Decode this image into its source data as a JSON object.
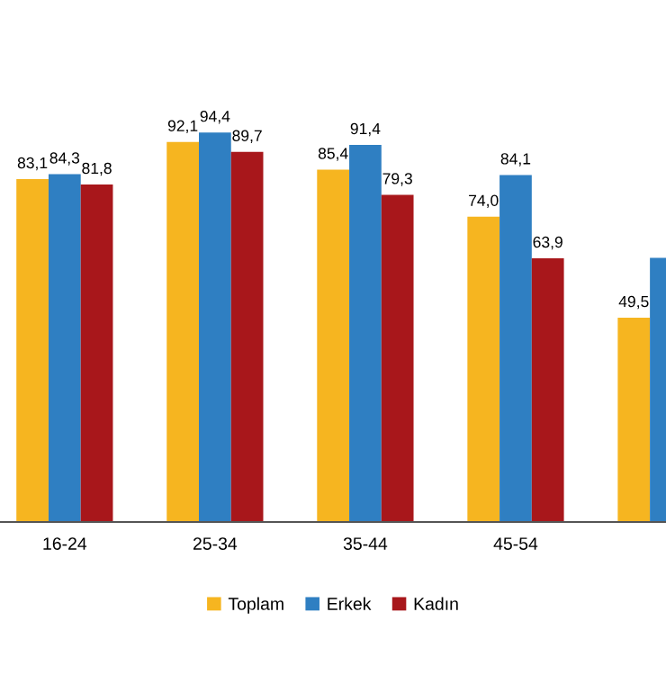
{
  "chart_data": {
    "type": "bar",
    "categories": [
      "16-24",
      "25-34",
      "35-44",
      "45-54",
      null
    ],
    "series": [
      {
        "name": "Toplam",
        "color": "#f6b520",
        "values": [
          83.1,
          92.1,
          85.4,
          74.0,
          49.5
        ],
        "value_labels": [
          "83,1",
          "92,1",
          "85,4",
          "74,0",
          "49,5"
        ]
      },
      {
        "name": "Erkek",
        "color": "#2f7fc2",
        "values": [
          84.3,
          94.4,
          91.4,
          84.1,
          64.0
        ],
        "value_labels": [
          "84,3",
          "94,4",
          "91,4",
          "84,1",
          null
        ]
      },
      {
        "name": "Kadın",
        "color": "#a8171b",
        "values": [
          81.8,
          89.7,
          79.3,
          63.9,
          null
        ],
        "value_labels": [
          "81,8",
          "89,7",
          "79,3",
          "63,9",
          null
        ]
      }
    ],
    "legend": "bottom",
    "grid": false
  }
}
